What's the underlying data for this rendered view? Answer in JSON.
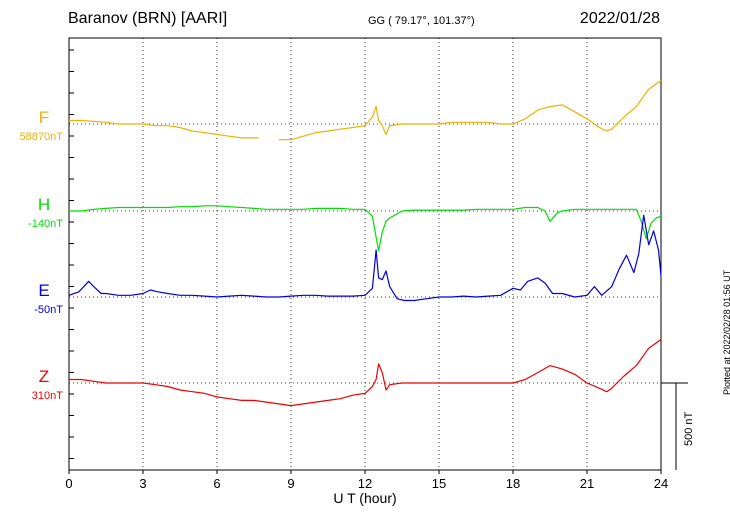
{
  "header": {
    "station": "Baranov (BRN)  [AARI]",
    "coords": "GG ( 79.17°, 101.37°)",
    "date": "2022/01/28",
    "plotted": "Plotted at 2022/02/28 01:56 UT"
  },
  "chart_data": {
    "type": "line",
    "title": "Baranov (BRN)  [AARI]",
    "xlabel": "U T (hour)",
    "xlim": [
      0,
      24
    ],
    "xticks": [
      "0",
      "3",
      "6",
      "9",
      "12",
      "15",
      "18",
      "21",
      "24"
    ],
    "grid": true,
    "scale_bar": {
      "label": "500 nT",
      "value_nT": 500
    },
    "series": [
      {
        "name": "F",
        "baseline_label": "58870nT",
        "color": "#f0b000",
        "x": [
          0,
          0.5,
          1.0,
          1.5,
          2.0,
          2.5,
          3.0,
          3.5,
          4.0,
          4.5,
          5.0,
          5.5,
          6.0,
          6.5,
          7.0,
          7.5,
          7.7,
          null,
          8.5,
          9.0,
          9.5,
          10.0,
          10.5,
          11.0,
          11.5,
          12.0,
          12.3,
          12.45,
          12.55,
          12.7,
          12.85,
          13.0,
          13.5,
          14.0,
          14.5,
          15.0,
          15.5,
          16.0,
          16.5,
          17.0,
          17.5,
          18.0,
          18.5,
          19.0,
          19.5,
          20.0,
          20.5,
          21.0,
          21.5,
          21.8,
          22.0,
          22.5,
          23.0,
          23.5,
          24.0
        ],
        "y": [
          20,
          20,
          15,
          10,
          0,
          0,
          0,
          -10,
          -10,
          -20,
          -40,
          -50,
          -60,
          -70,
          -80,
          -80,
          -80,
          null,
          -90,
          -90,
          -70,
          -50,
          -40,
          -30,
          -20,
          -10,
          40,
          100,
          20,
          -10,
          -60,
          -10,
          0,
          0,
          0,
          0,
          10,
          10,
          10,
          10,
          0,
          0,
          30,
          80,
          100,
          110,
          70,
          30,
          -20,
          -40,
          -30,
          40,
          100,
          200,
          250
        ]
      },
      {
        "name": "H",
        "baseline_label": "-140nT",
        "color": "#00dd00",
        "x": [
          0,
          0.5,
          1.0,
          1.5,
          2.0,
          2.5,
          3.0,
          3.5,
          4.0,
          4.5,
          5.0,
          5.5,
          6.0,
          6.5,
          7.0,
          7.5,
          8.0,
          8.5,
          9.0,
          9.5,
          10.0,
          10.5,
          11.0,
          11.5,
          12.0,
          12.3,
          12.45,
          12.55,
          12.7,
          12.85,
          13.0,
          13.5,
          14.0,
          14.5,
          15.0,
          15.5,
          16.0,
          16.5,
          17.0,
          17.5,
          18.0,
          18.5,
          19.0,
          19.3,
          19.5,
          19.8,
          20.0,
          20.5,
          21.0,
          21.5,
          22.0,
          22.5,
          23.0,
          23.2,
          23.4,
          23.6,
          23.8,
          24.0
        ],
        "y": [
          0,
          0,
          10,
          15,
          20,
          20,
          20,
          20,
          20,
          25,
          25,
          30,
          30,
          25,
          20,
          15,
          10,
          10,
          10,
          10,
          15,
          15,
          15,
          10,
          10,
          -30,
          -150,
          -230,
          -120,
          -60,
          -40,
          0,
          5,
          5,
          5,
          5,
          5,
          10,
          10,
          10,
          10,
          20,
          20,
          0,
          -60,
          -10,
          0,
          10,
          10,
          10,
          10,
          10,
          10,
          -60,
          -160,
          -70,
          -40,
          -30
        ]
      },
      {
        "name": "E",
        "baseline_label": "-50nT",
        "color": "#0000dd",
        "x": [
          0,
          0.4,
          0.8,
          1.0,
          1.3,
          1.5,
          2.0,
          2.5,
          3.0,
          3.3,
          3.6,
          4.0,
          4.5,
          5.0,
          5.5,
          6.0,
          6.5,
          7.0,
          7.5,
          8.0,
          8.5,
          9.0,
          9.5,
          10.0,
          10.5,
          11.0,
          11.5,
          12.0,
          12.3,
          12.45,
          12.55,
          12.7,
          12.85,
          13.0,
          13.3,
          13.6,
          14.0,
          14.5,
          15.0,
          15.5,
          16.0,
          16.5,
          17.0,
          17.5,
          18.0,
          18.3,
          18.6,
          19.0,
          19.3,
          19.6,
          20.0,
          20.5,
          21.0,
          21.3,
          21.6,
          22.0,
          22.3,
          22.6,
          22.9,
          23.1,
          23.3,
          23.5,
          23.7,
          23.9,
          24.0
        ],
        "y": [
          10,
          30,
          90,
          60,
          20,
          20,
          10,
          10,
          20,
          40,
          30,
          20,
          10,
          10,
          5,
          0,
          5,
          10,
          5,
          0,
          0,
          5,
          10,
          10,
          5,
          5,
          5,
          10,
          50,
          270,
          110,
          100,
          150,
          60,
          -10,
          -20,
          -20,
          -10,
          0,
          0,
          5,
          0,
          5,
          10,
          50,
          40,
          90,
          110,
          80,
          20,
          20,
          0,
          10,
          60,
          10,
          60,
          160,
          240,
          140,
          250,
          470,
          300,
          380,
          270,
          120
        ]
      },
      {
        "name": "Z",
        "baseline_label": "310nT",
        "color": "#ee0000",
        "x": [
          0,
          0.5,
          1.0,
          1.5,
          2.0,
          2.5,
          3.0,
          3.5,
          4.0,
          4.5,
          5.0,
          5.5,
          6.0,
          6.5,
          7.0,
          7.5,
          8.0,
          8.5,
          9.0,
          9.5,
          10.0,
          10.5,
          11.0,
          11.5,
          12.0,
          12.3,
          12.45,
          12.55,
          12.7,
          12.85,
          13.0,
          13.5,
          14.0,
          14.5,
          15.0,
          15.5,
          16.0,
          16.5,
          17.0,
          17.5,
          18.0,
          18.5,
          19.0,
          19.5,
          20.0,
          20.5,
          21.0,
          21.5,
          21.8,
          22.0,
          22.5,
          23.0,
          23.5,
          24.0
        ],
        "y": [
          20,
          20,
          10,
          0,
          0,
          0,
          0,
          -10,
          -20,
          -40,
          -50,
          -60,
          -80,
          -90,
          -100,
          -100,
          -110,
          -120,
          -130,
          -120,
          -110,
          -100,
          -90,
          -70,
          -60,
          -20,
          20,
          110,
          60,
          -40,
          -10,
          0,
          0,
          0,
          0,
          0,
          0,
          0,
          0,
          0,
          0,
          20,
          60,
          100,
          80,
          50,
          0,
          -30,
          -50,
          -30,
          40,
          100,
          200,
          250
        ]
      }
    ]
  }
}
